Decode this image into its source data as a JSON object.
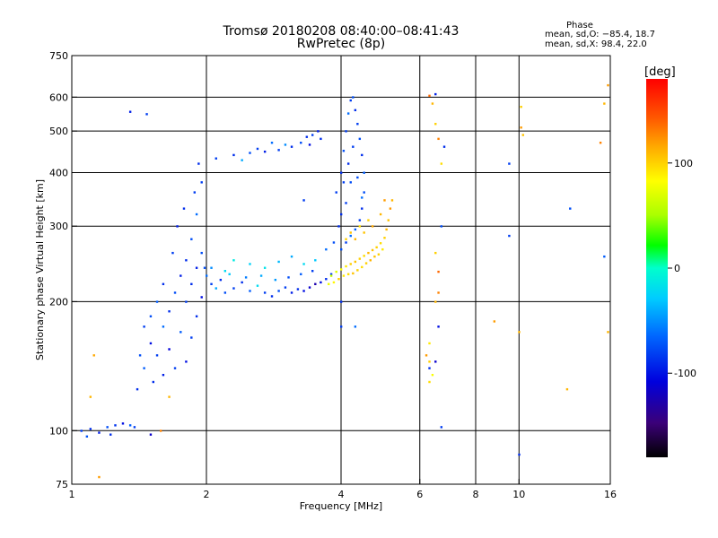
{
  "header": {
    "title_line1": "Tromsø 20180208 08:40:00–08:41:43",
    "title_line2": "RwPretec (8p)"
  },
  "phase_stats": {
    "heading": "Phase",
    "o_line": "mean, sd,O: −85.4, 18.7",
    "x_line": "mean, sd,X: 98.4, 22.0"
  },
  "chart_data": {
    "type": "scatter",
    "title": "Tromsø 20180208 08:40:00–08:41:43",
    "subtitle": "RwPretec (8p)",
    "xlabel": "Frequency [MHz]",
    "ylabel": "Stationary phase Virtual Height [km]",
    "xscale": "log",
    "yscale": "log",
    "xlim": [
      1,
      16
    ],
    "ylim": [
      75,
      750
    ],
    "x_ticks": [
      1,
      2,
      4,
      6,
      8,
      10,
      16
    ],
    "x_tick_labels": [
      "1",
      "2",
      "4",
      "6",
      "8",
      "10",
      "16"
    ],
    "y_ticks": [
      75,
      100,
      200,
      300,
      400,
      500,
      600,
      750
    ],
    "y_tick_labels": [
      "75",
      "100",
      "200",
      "300",
      "400",
      "500",
      "600",
      "750"
    ],
    "x_gridlines": [
      2,
      4,
      6,
      8,
      10
    ],
    "y_gridlines": [
      100,
      200,
      300,
      400,
      500,
      600
    ],
    "grid": true,
    "colorbar": {
      "label": "[deg]",
      "range": [
        -180,
        180
      ],
      "ticks": [
        100,
        0,
        -100
      ],
      "tick_labels": [
        "100",
        "0",
        "-100"
      ],
      "colors": [
        "#000000",
        "#3b0078",
        "#0000dd",
        "#0066ff",
        "#00ccff",
        "#00ffcc",
        "#00ff00",
        "#aaff00",
        "#ffff00",
        "#ffaa00",
        "#ff5500",
        "#ff0000"
      ]
    },
    "series": [
      {
        "name": "O",
        "mean_phase": -85.4,
        "points": [
          [
            1.05,
            100,
            -95
          ],
          [
            1.1,
            101,
            -100
          ],
          [
            1.15,
            99,
            -105
          ],
          [
            1.2,
            102,
            -90
          ],
          [
            1.25,
            103,
            -98
          ],
          [
            1.3,
            104,
            -110
          ],
          [
            1.35,
            103,
            -85
          ],
          [
            1.22,
            98,
            -100
          ],
          [
            1.38,
            102,
            -95
          ],
          [
            1.08,
            97,
            -88
          ],
          [
            1.5,
            98,
            -120
          ],
          [
            1.35,
            555,
            -105
          ],
          [
            1.47,
            548,
            -95
          ],
          [
            1.4,
            125,
            -100
          ],
          [
            1.45,
            140,
            -85
          ],
          [
            1.5,
            160,
            -110
          ],
          [
            1.5,
            185,
            -90
          ],
          [
            1.55,
            150,
            -95
          ],
          [
            1.6,
            175,
            -80
          ],
          [
            1.6,
            135,
            -105
          ],
          [
            1.65,
            190,
            -100
          ],
          [
            1.65,
            155,
            -115
          ],
          [
            1.7,
            210,
            -90
          ],
          [
            1.7,
            140,
            -95
          ],
          [
            1.75,
            230,
            -105
          ],
          [
            1.75,
            170,
            -85
          ],
          [
            1.8,
            250,
            -100
          ],
          [
            1.8,
            200,
            -95
          ],
          [
            1.8,
            145,
            -110
          ],
          [
            1.85,
            280,
            -90
          ],
          [
            1.85,
            220,
            -100
          ],
          [
            1.85,
            165,
            -95
          ],
          [
            1.9,
            320,
            -80
          ],
          [
            1.9,
            240,
            -105
          ],
          [
            1.9,
            185,
            -100
          ],
          [
            1.95,
            380,
            -95
          ],
          [
            1.95,
            260,
            -90
          ],
          [
            1.95,
            205,
            -110
          ],
          [
            1.55,
            200,
            -85
          ],
          [
            1.6,
            220,
            -100
          ],
          [
            1.45,
            175,
            -95
          ],
          [
            1.42,
            150,
            -90
          ],
          [
            1.52,
            130,
            -100
          ],
          [
            1.68,
            260,
            -95
          ],
          [
            1.72,
            300,
            -105
          ],
          [
            1.78,
            330,
            -100
          ],
          [
            1.88,
            360,
            -95
          ],
          [
            1.92,
            420,
            -100
          ],
          [
            1.98,
            240,
            -90
          ],
          [
            2.0,
            230,
            -80
          ],
          [
            2.05,
            220,
            -95
          ],
          [
            2.1,
            215,
            -60
          ],
          [
            2.15,
            225,
            -100
          ],
          [
            2.2,
            210,
            -90
          ],
          [
            2.25,
            232,
            -50
          ],
          [
            2.3,
            215,
            -95
          ],
          [
            2.4,
            222,
            -100
          ],
          [
            2.5,
            212,
            -85
          ],
          [
            2.6,
            218,
            -40
          ],
          [
            2.7,
            210,
            -95
          ],
          [
            2.8,
            206,
            -100
          ],
          [
            2.9,
            212,
            -90
          ],
          [
            3.0,
            216,
            -95
          ],
          [
            3.1,
            210,
            -105
          ],
          [
            3.2,
            214,
            -100
          ],
          [
            3.3,
            212,
            -110
          ],
          [
            3.4,
            216,
            -120
          ],
          [
            3.5,
            220,
            -130
          ],
          [
            3.6,
            222,
            -110
          ],
          [
            3.7,
            226,
            -100
          ],
          [
            3.8,
            232,
            -95
          ],
          [
            2.3,
            250,
            -30
          ],
          [
            2.5,
            245,
            -45
          ],
          [
            2.7,
            240,
            -35
          ],
          [
            2.9,
            248,
            -55
          ],
          [
            3.1,
            255,
            -60
          ],
          [
            3.3,
            245,
            -40
          ],
          [
            3.5,
            250,
            -50
          ],
          [
            3.7,
            265,
            -80
          ],
          [
            3.85,
            275,
            -90
          ],
          [
            2.05,
            240,
            -70
          ],
          [
            2.2,
            236,
            -40
          ],
          [
            2.45,
            228,
            -75
          ],
          [
            2.65,
            230,
            -60
          ],
          [
            2.85,
            225,
            -65
          ],
          [
            3.05,
            228,
            -90
          ],
          [
            3.25,
            232,
            -85
          ],
          [
            3.45,
            236,
            -95
          ],
          [
            2.1,
            432,
            -95
          ],
          [
            2.3,
            440,
            -100
          ],
          [
            2.5,
            445,
            -90
          ],
          [
            2.7,
            448,
            -105
          ],
          [
            2.9,
            452,
            -95
          ],
          [
            3.0,
            465,
            -70
          ],
          [
            3.1,
            460,
            -100
          ],
          [
            3.25,
            470,
            -90
          ],
          [
            3.35,
            485,
            -100
          ],
          [
            3.45,
            490,
            -95
          ],
          [
            3.55,
            500,
            -105
          ],
          [
            3.6,
            480,
            -100
          ],
          [
            2.4,
            428,
            -60
          ],
          [
            2.6,
            455,
            -95
          ],
          [
            2.8,
            470,
            -80
          ],
          [
            3.4,
            465,
            -110
          ],
          [
            3.9,
            360,
            -95
          ],
          [
            4.0,
            400,
            -100
          ],
          [
            4.05,
            450,
            -90
          ],
          [
            4.1,
            500,
            -95
          ],
          [
            4.15,
            550,
            -80
          ],
          [
            4.2,
            590,
            -95
          ],
          [
            4.25,
            600,
            -90
          ],
          [
            4.3,
            560,
            -100
          ],
          [
            4.35,
            520,
            -95
          ],
          [
            4.4,
            480,
            -90
          ],
          [
            4.45,
            440,
            -100
          ],
          [
            4.5,
            400,
            -85
          ],
          [
            4.5,
            360,
            -90
          ],
          [
            4.45,
            330,
            -100
          ],
          [
            4.4,
            310,
            -95
          ],
          [
            4.3,
            295,
            -85
          ],
          [
            4.2,
            285,
            -80
          ],
          [
            4.1,
            275,
            -95
          ],
          [
            4.0,
            265,
            -90
          ],
          [
            4.0,
            320,
            -100
          ],
          [
            4.05,
            380,
            -95
          ],
          [
            4.15,
            420,
            -100
          ],
          [
            4.25,
            460,
            -95
          ],
          [
            4.35,
            390,
            -90
          ],
          [
            4.45,
            350,
            -80
          ],
          [
            3.95,
            300,
            -100
          ],
          [
            4.1,
            340,
            -95
          ],
          [
            4.2,
            380,
            -90
          ],
          [
            3.3,
            345,
            -95
          ],
          [
            4.0,
            175,
            -95
          ],
          [
            4.0,
            200,
            -100
          ],
          [
            4.3,
            175,
            -80
          ],
          [
            10.0,
            88,
            -100
          ],
          [
            9.5,
            420,
            -95
          ],
          [
            6.7,
            102,
            -95
          ],
          [
            6.8,
            460,
            -100
          ],
          [
            6.7,
            300,
            -90
          ],
          [
            6.6,
            175,
            -110
          ],
          [
            15.5,
            255,
            -85
          ],
          [
            13.0,
            330,
            -90
          ],
          [
            9.5,
            285,
            -95
          ],
          [
            6.5,
            610,
            -105
          ],
          [
            6.5,
            145,
            -120
          ],
          [
            6.3,
            140,
            -100
          ]
        ]
      },
      {
        "name": "X",
        "mean_phase": 98.4,
        "points": [
          [
            3.8,
            230,
            60
          ],
          [
            3.9,
            235,
            70
          ],
          [
            4.0,
            238,
            80
          ],
          [
            4.1,
            242,
            90
          ],
          [
            4.2,
            245,
            100
          ],
          [
            4.3,
            248,
            105
          ],
          [
            4.4,
            252,
            100
          ],
          [
            4.5,
            256,
            95
          ],
          [
            4.6,
            260,
            110
          ],
          [
            4.7,
            264,
            105
          ],
          [
            4.8,
            268,
            100
          ],
          [
            4.9,
            274,
            95
          ],
          [
            5.0,
            282,
            100
          ],
          [
            5.05,
            295,
            110
          ],
          [
            5.1,
            310,
            105
          ],
          [
            5.15,
            330,
            120
          ],
          [
            5.2,
            345,
            110
          ],
          [
            4.95,
            265,
            90
          ],
          [
            4.85,
            258,
            100
          ],
          [
            4.75,
            255,
            105
          ],
          [
            4.65,
            250,
            110
          ],
          [
            4.55,
            246,
            100
          ],
          [
            4.45,
            241,
            95
          ],
          [
            4.35,
            237,
            100
          ],
          [
            4.25,
            233,
            105
          ],
          [
            4.15,
            232,
            95
          ],
          [
            4.05,
            230,
            90
          ],
          [
            3.95,
            226,
            100
          ],
          [
            3.85,
            222,
            85
          ],
          [
            3.75,
            220,
            75
          ],
          [
            4.3,
            280,
            110
          ],
          [
            4.5,
            290,
            105
          ],
          [
            4.7,
            300,
            115
          ],
          [
            4.9,
            320,
            110
          ],
          [
            5.0,
            345,
            120
          ],
          [
            4.6,
            310,
            100
          ],
          [
            4.4,
            300,
            95
          ],
          [
            4.2,
            290,
            105
          ],
          [
            4.1,
            280,
            100
          ],
          [
            6.3,
            605,
            140
          ],
          [
            6.4,
            580,
            110
          ],
          [
            6.5,
            520,
            100
          ],
          [
            6.6,
            480,
            130
          ],
          [
            6.7,
            420,
            95
          ],
          [
            6.5,
            200,
            110
          ],
          [
            6.3,
            160,
            90
          ],
          [
            6.2,
            150,
            120
          ],
          [
            6.3,
            145,
            100
          ],
          [
            6.4,
            135,
            80
          ],
          [
            6.6,
            210,
            130
          ],
          [
            6.6,
            235,
            140
          ],
          [
            6.5,
            260,
            100
          ],
          [
            6.3,
            130,
            95
          ],
          [
            15.8,
            640,
            120
          ],
          [
            15.5,
            580,
            110
          ],
          [
            15.2,
            470,
            130
          ],
          [
            15.8,
            170,
            110
          ],
          [
            10.1,
            510,
            120
          ],
          [
            10.2,
            490,
            105
          ],
          [
            10.0,
            170,
            110
          ],
          [
            8.8,
            180,
            120
          ],
          [
            12.8,
            125,
            110
          ],
          [
            10.1,
            570,
            100
          ],
          [
            1.1,
            120,
            110
          ],
          [
            1.12,
            150,
            115
          ],
          [
            1.15,
            78,
            120
          ],
          [
            1.58,
            100,
            130
          ],
          [
            1.65,
            120,
            110
          ]
        ]
      }
    ]
  }
}
